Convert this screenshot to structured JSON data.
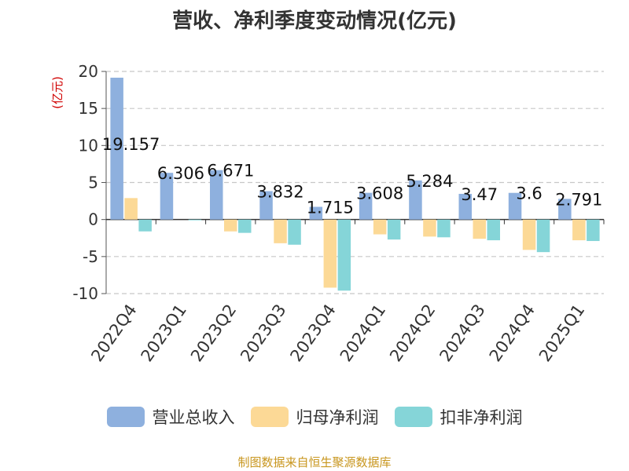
{
  "chart_data": {
    "type": "bar",
    "title": "营收、净利季度变动情况(亿元)",
    "ylabel": "(亿元)",
    "xlabel": "",
    "ylim": [
      -10,
      20
    ],
    "yticks": [
      20,
      15,
      10,
      5,
      0,
      -5,
      -10
    ],
    "grid": true,
    "legend_position": "bottom",
    "categories": [
      "2022Q4",
      "2023Q1",
      "2023Q2",
      "2023Q3",
      "2023Q4",
      "2024Q1",
      "2024Q2",
      "2024Q3",
      "2024Q4",
      "2025Q1"
    ],
    "series": [
      {
        "name": "营业总收入",
        "color": "#8eb0de",
        "values": [
          19.157,
          6.306,
          6.671,
          3.832,
          1.715,
          3.608,
          5.284,
          3.47,
          3.6,
          2.791
        ]
      },
      {
        "name": "归母净利润",
        "color": "#fcd996",
        "values": [
          2.9,
          0.0,
          -1.6,
          -3.2,
          -9.2,
          -2.0,
          -2.3,
          -2.6,
          -4.1,
          -2.8
        ]
      },
      {
        "name": "扣非净利润",
        "color": "#85d5d8",
        "values": [
          -1.6,
          -0.1,
          -1.8,
          -3.4,
          -9.6,
          -2.7,
          -2.4,
          -2.8,
          -4.4,
          -2.9
        ]
      }
    ],
    "data_labels": [
      "19.157",
      "6.306",
      "6.671",
      "3.832",
      "1.715",
      "3.608",
      "5.284",
      "3.47",
      "3.6",
      "2.791"
    ]
  },
  "footer": {
    "source": "制图数据来自恒生聚源数据库"
  }
}
